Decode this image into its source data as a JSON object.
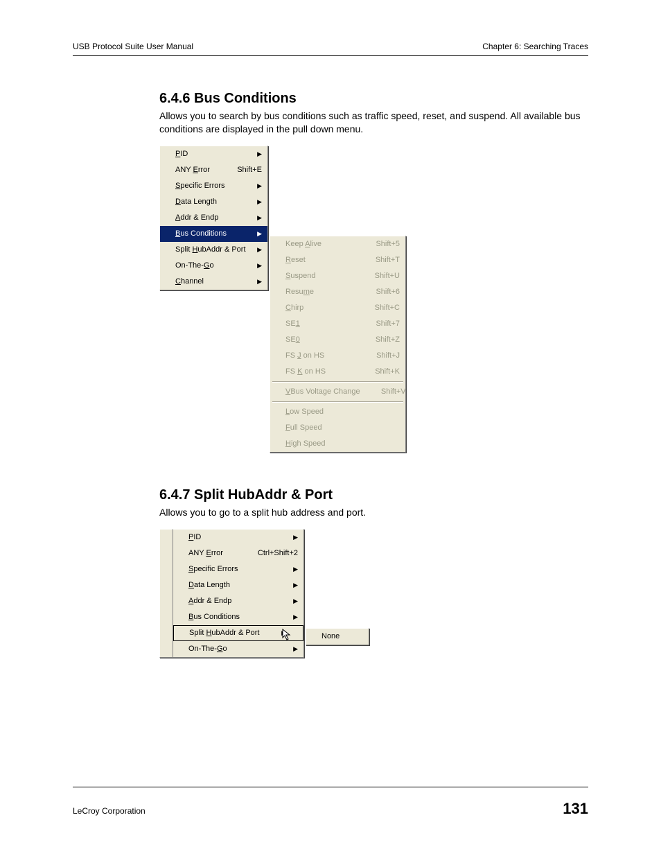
{
  "header": {
    "left": "USB Protocol Suite User Manual",
    "right": "Chapter 6: Searching Traces"
  },
  "section1": {
    "heading": "6.4.6 Bus Conditions",
    "body": "Allows you to search by bus conditions such as traffic speed, reset, and suspend. All available bus conditions are displayed in the pull down menu."
  },
  "menu1": {
    "items": [
      {
        "pre": "",
        "u": "P",
        "post": "ID",
        "shortcut": "",
        "arrow": true
      },
      {
        "pre": "ANY ",
        "u": "E",
        "post": "rror",
        "shortcut": "Shift+E",
        "arrow": false
      },
      {
        "pre": "",
        "u": "S",
        "post": "pecific Errors",
        "shortcut": "",
        "arrow": true
      },
      {
        "pre": "",
        "u": "D",
        "post": "ata Length",
        "shortcut": "",
        "arrow": true
      },
      {
        "pre": "",
        "u": "A",
        "post": "ddr & Endp",
        "shortcut": "",
        "arrow": true
      },
      {
        "pre": "",
        "u": "B",
        "post": "us Conditions",
        "shortcut": "",
        "arrow": true,
        "selected": true
      },
      {
        "pre": "Split ",
        "u": "H",
        "post": "ubAddr & Port",
        "shortcut": "",
        "arrow": true
      },
      {
        "pre": "On-The-",
        "u": "G",
        "post": "o",
        "shortcut": "",
        "arrow": true
      },
      {
        "pre": "",
        "u": "C",
        "post": "hannel",
        "shortcut": "",
        "arrow": true
      }
    ]
  },
  "submenu1": {
    "groups": [
      [
        {
          "pre": "Keep ",
          "u": "A",
          "post": "live",
          "shortcut": "Shift+5"
        },
        {
          "pre": "",
          "u": "R",
          "post": "eset",
          "shortcut": "Shift+T"
        },
        {
          "pre": "",
          "u": "S",
          "post": "uspend",
          "shortcut": "Shift+U"
        },
        {
          "pre": "Resu",
          "u": "m",
          "post": "e",
          "shortcut": "Shift+6"
        },
        {
          "pre": "",
          "u": "C",
          "post": "hirp",
          "shortcut": "Shift+C"
        },
        {
          "pre": "SE",
          "u": "1",
          "post": "",
          "shortcut": "Shift+7"
        },
        {
          "pre": "SE",
          "u": "0",
          "post": "",
          "shortcut": "Shift+Z"
        },
        {
          "pre": "FS ",
          "u": "J",
          "post": " on HS",
          "shortcut": "Shift+J"
        },
        {
          "pre": "FS ",
          "u": "K",
          "post": " on HS",
          "shortcut": "Shift+K"
        }
      ],
      [
        {
          "pre": "",
          "u": "V",
          "post": "Bus Voltage Change",
          "shortcut": "Shift+V"
        }
      ],
      [
        {
          "pre": "",
          "u": "L",
          "post": "ow Speed",
          "shortcut": ""
        },
        {
          "pre": "",
          "u": "F",
          "post": "ull Speed",
          "shortcut": ""
        },
        {
          "pre": "",
          "u": "H",
          "post": "igh Speed",
          "shortcut": ""
        }
      ]
    ]
  },
  "section2": {
    "heading": "6.4.7 Split HubAddr & Port",
    "body": "Allows you to go to a split hub address and port."
  },
  "menu2": {
    "items": [
      {
        "pre": "",
        "u": "P",
        "post": "ID",
        "shortcut": "",
        "arrow": true
      },
      {
        "pre": "ANY ",
        "u": "E",
        "post": "rror",
        "shortcut": "Ctrl+Shift+2",
        "arrow": false
      },
      {
        "pre": "",
        "u": "S",
        "post": "pecific Errors",
        "shortcut": "",
        "arrow": true
      },
      {
        "pre": "",
        "u": "D",
        "post": "ata Length",
        "shortcut": "",
        "arrow": true
      },
      {
        "pre": "",
        "u": "A",
        "post": "ddr & Endp",
        "shortcut": "",
        "arrow": true
      },
      {
        "pre": "",
        "u": "B",
        "post": "us Conditions",
        "shortcut": "",
        "arrow": true
      },
      {
        "pre": "Split ",
        "u": "H",
        "post": "ubAddr & Port",
        "shortcut": "",
        "arrow": true,
        "hl": true
      },
      {
        "pre": "On-The-",
        "u": "G",
        "post": "o",
        "shortcut": "",
        "arrow": true
      }
    ]
  },
  "submenu2": {
    "label": "None"
  },
  "footer": {
    "left": "LeCroy Corporation",
    "page": "131"
  },
  "colors": {
    "menu_bg": "#ece9d8",
    "selected_bg": "#0a246a",
    "selected_fg": "#ffffff",
    "disabled_fg": "#9a9a86"
  }
}
